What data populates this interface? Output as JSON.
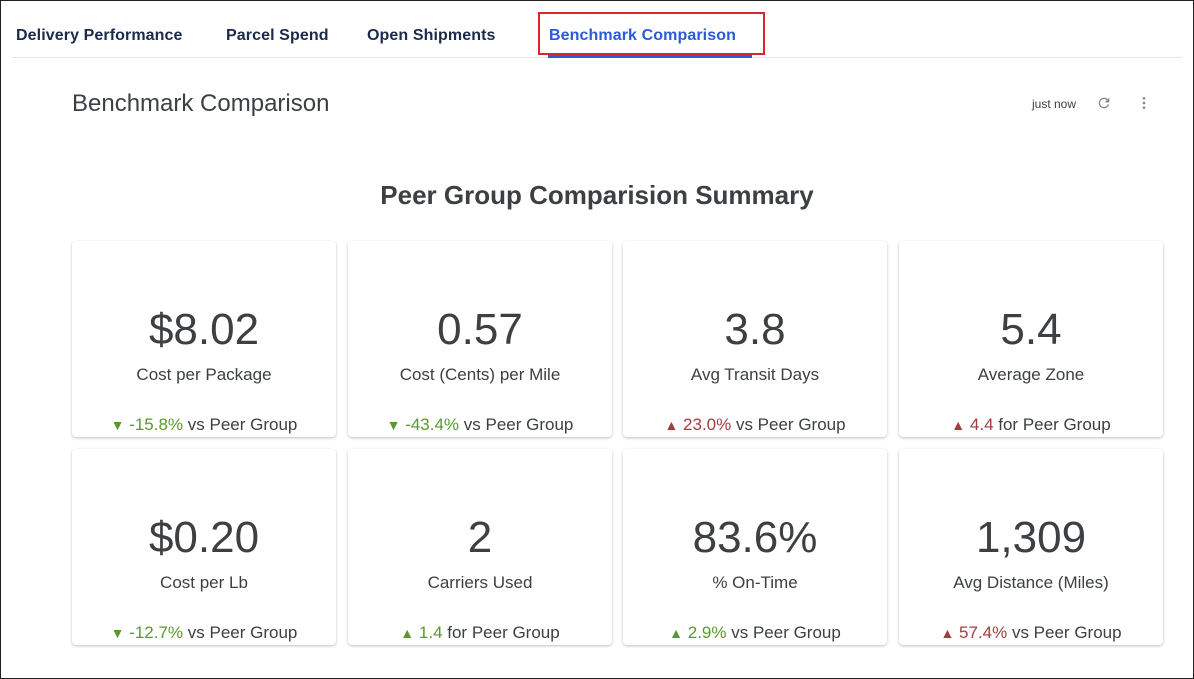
{
  "tabs": [
    {
      "label": "Delivery Performance"
    },
    {
      "label": "Parcel Spend"
    },
    {
      "label": "Open Shipments"
    },
    {
      "label": "Benchmark Comparison"
    }
  ],
  "active_tab": "Benchmark Comparison",
  "header": {
    "title": "Benchmark Comparison",
    "updated": "just now"
  },
  "section_title": "Peer Group Comparision Summary",
  "colors": {
    "accent": "#2a5bd7",
    "highlight_box": "#d9262e",
    "positive": "#5a9a2c",
    "negative": "#a33d3d"
  },
  "cards": [
    {
      "value": "$8.02",
      "label": "Cost per Package",
      "arrow": "▼",
      "delta": "-15.8%",
      "suffix": " vs Peer Group",
      "tone": "good"
    },
    {
      "value": "0.57",
      "label": "Cost (Cents) per Mile",
      "arrow": "▼",
      "delta": "-43.4%",
      "suffix": " vs Peer Group",
      "tone": "good"
    },
    {
      "value": "3.8",
      "label": "Avg Transit Days",
      "arrow": "▲",
      "delta": "23.0%",
      "suffix": " vs Peer Group",
      "tone": "bad"
    },
    {
      "value": "5.4",
      "label": "Average Zone",
      "arrow": "▲",
      "delta": "4.4",
      "suffix": " for Peer Group",
      "tone": "bad"
    },
    {
      "value": "$0.20",
      "label": "Cost per Lb",
      "arrow": "▼",
      "delta": "-12.7%",
      "suffix": " vs Peer Group",
      "tone": "good"
    },
    {
      "value": "2",
      "label": "Carriers Used",
      "arrow": "▲",
      "delta": "1.4",
      "suffix": " for Peer Group",
      "tone": "good"
    },
    {
      "value": "83.6%",
      "label": "% On-Time",
      "arrow": "▲",
      "delta": "2.9%",
      "suffix": " vs Peer Group",
      "tone": "good"
    },
    {
      "value": "1,309",
      "label": "Avg Distance (Miles)",
      "arrow": "▲",
      "delta": "57.4%",
      "suffix": " vs Peer Group",
      "tone": "bad"
    }
  ]
}
